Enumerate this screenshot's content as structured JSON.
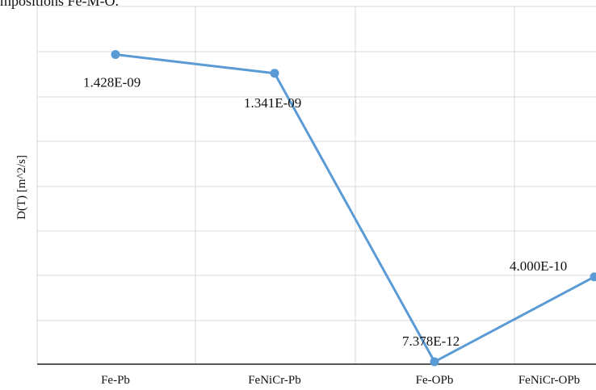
{
  "caption_fragment": "mpositions Fe-M-O.",
  "chart_data": {
    "type": "line",
    "categories": [
      "Fe-Pb",
      "FeNiCr-Pb",
      "Fe-OPb",
      "FeNiCr-OPb"
    ],
    "values": [
      1.428e-09,
      1.341e-09,
      7.378e-12,
      4e-10
    ],
    "data_labels": [
      "1.428E-09",
      "1.341E-09",
      "7.378E-12",
      "4.000E-10"
    ],
    "title": "",
    "xlabel": "",
    "ylabel": "D(T) [m^2/s]",
    "ylim": [
      0,
      1.65e-09
    ],
    "grid": true,
    "legend": "none",
    "line_color": "#5b9bd5",
    "grid_color": "#d9d9d9"
  }
}
